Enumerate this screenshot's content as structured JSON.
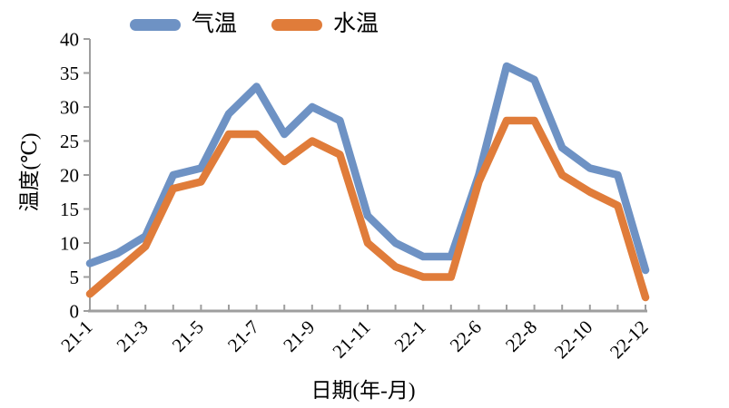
{
  "legend": {
    "series": [
      {
        "label": "气温",
        "color": "#6E92C4"
      },
      {
        "label": "水温",
        "color": "#E07C3A"
      }
    ]
  },
  "axes": {
    "y_title": "温度(℃)",
    "x_title": "日期(年-月)",
    "y_ticks": [
      0,
      5,
      10,
      15,
      20,
      25,
      30,
      35,
      40
    ],
    "x_tick_labels_visible": [
      "21-1",
      "21-3",
      "21-5",
      "21-7",
      "21-9",
      "21-11",
      "22-1",
      "22-6",
      "22-8",
      "22-10",
      "22-12"
    ],
    "axis_color": "#9E9E9E"
  },
  "chart_data": {
    "type": "line",
    "title": "",
    "xlabel": "日期(年-月)",
    "ylabel": "温度(℃)",
    "ylim": [
      0,
      40
    ],
    "grid": false,
    "legend_position": "top",
    "xtick_label_every": 2,
    "categories": [
      "21-1",
      "21-2",
      "21-3",
      "21-4",
      "21-5",
      "21-6",
      "21-7",
      "21-8",
      "21-9",
      "21-10",
      "21-11",
      "21-12",
      "22-1",
      "22-5",
      "22-6",
      "22-7",
      "22-8",
      "22-9",
      "22-10",
      "22-11",
      "22-12"
    ],
    "series": [
      {
        "name": "气温",
        "color": "#6E92C4",
        "values": [
          7,
          8.5,
          11,
          20,
          21,
          29,
          33,
          26,
          30,
          28,
          14,
          10,
          8,
          8,
          20,
          36,
          34,
          24,
          21,
          20,
          6
        ]
      },
      {
        "name": "水温",
        "color": "#E07C3A",
        "values": [
          2.5,
          6,
          9.5,
          18,
          19,
          26,
          26,
          22,
          25,
          23,
          10,
          6.5,
          5,
          5,
          19,
          28,
          28,
          20,
          17.5,
          15.5,
          2
        ]
      }
    ]
  }
}
